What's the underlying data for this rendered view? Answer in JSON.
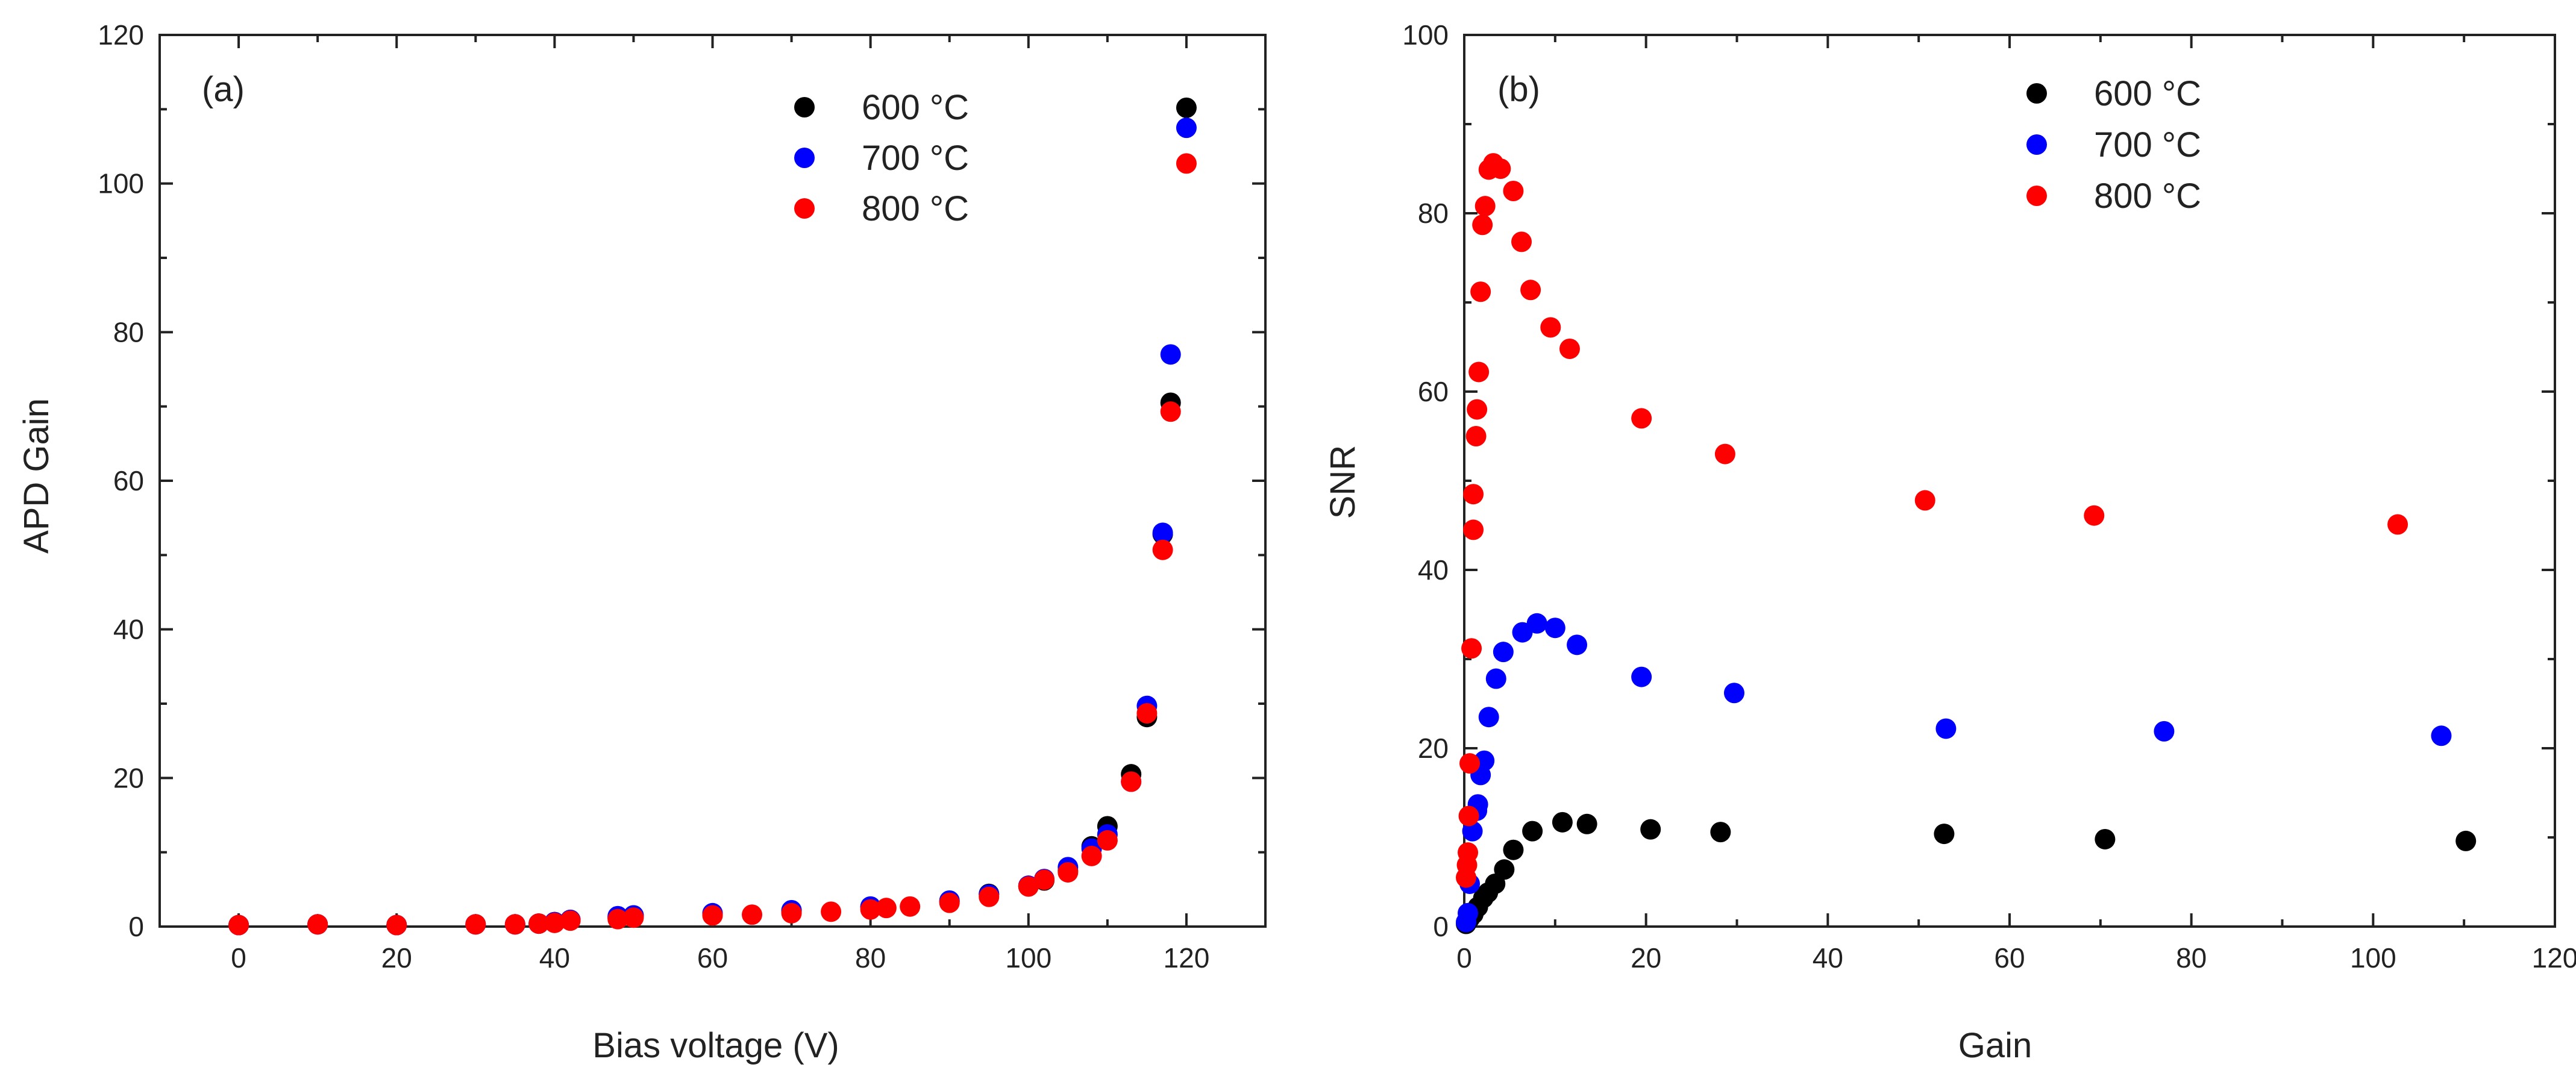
{
  "chart_data": [
    {
      "type": "scatter",
      "panel_label": "(a)",
      "xlabel": "Bias voltage (V)",
      "ylabel": "APD Gain",
      "xlim": [
        -10,
        130
      ],
      "ylim": [
        0,
        120
      ],
      "x_ticks": [
        0,
        20,
        40,
        60,
        80,
        100,
        120
      ],
      "y_ticks": [
        0,
        20,
        40,
        60,
        80,
        100,
        120
      ],
      "legend_position": "top-right",
      "series": [
        {
          "name": "600 °C",
          "color": "#000000",
          "points": [
            [
              0,
              0.2
            ],
            [
              10,
              0.3
            ],
            [
              20,
              0.2
            ],
            [
              30,
              0.3
            ],
            [
              35,
              0.3
            ],
            [
              38,
              0.4
            ],
            [
              40,
              0.6
            ],
            [
              42,
              0.9
            ],
            [
              48,
              1.2
            ],
            [
              50,
              1.5
            ],
            [
              60,
              1.7
            ],
            [
              70,
              2.1
            ],
            [
              80,
              2.6
            ],
            [
              90,
              3.4
            ],
            [
              95,
              4.4
            ],
            [
              100,
              5.4
            ],
            [
              102,
              6.2
            ],
            [
              105,
              7.5
            ],
            [
              108,
              10.8
            ],
            [
              110,
              13.5
            ],
            [
              113,
              20.5
            ],
            [
              115,
              28.2
            ],
            [
              117,
              52.8
            ],
            [
              118,
              70.5
            ],
            [
              120,
              110.2
            ]
          ]
        },
        {
          "name": "700 °C",
          "color": "#0000ff",
          "points": [
            [
              0,
              0.2
            ],
            [
              10,
              0.3
            ],
            [
              20,
              0.2
            ],
            [
              30,
              0.3
            ],
            [
              35,
              0.3
            ],
            [
              38,
              0.4
            ],
            [
              40,
              0.6
            ],
            [
              42,
              0.9
            ],
            [
              48,
              1.4
            ],
            [
              50,
              1.5
            ],
            [
              60,
              1.8
            ],
            [
              70,
              2.2
            ],
            [
              80,
              2.7
            ],
            [
              90,
              3.5
            ],
            [
              95,
              4.3
            ],
            [
              100,
              5.5
            ],
            [
              102,
              6.4
            ],
            [
              105,
              8.0
            ],
            [
              108,
              10.5
            ],
            [
              110,
              12.4
            ],
            [
              113,
              19.5
            ],
            [
              115,
              29.7
            ],
            [
              117,
              53.0
            ],
            [
              118,
              77.0
            ],
            [
              120,
              107.5
            ]
          ]
        },
        {
          "name": "800 °C",
          "color": "#ff0000",
          "points": [
            [
              0,
              0.2
            ],
            [
              10,
              0.3
            ],
            [
              20,
              0.2
            ],
            [
              30,
              0.3
            ],
            [
              35,
              0.3
            ],
            [
              38,
              0.4
            ],
            [
              40,
              0.5
            ],
            [
              42,
              0.8
            ],
            [
              48,
              1.0
            ],
            [
              50,
              1.2
            ],
            [
              60,
              1.5
            ],
            [
              65,
              1.6
            ],
            [
              70,
              1.8
            ],
            [
              75,
              2.0
            ],
            [
              80,
              2.3
            ],
            [
              82,
              2.5
            ],
            [
              85,
              2.7
            ],
            [
              90,
              3.2
            ],
            [
              95,
              4.0
            ],
            [
              100,
              5.4
            ],
            [
              102,
              6.3
            ],
            [
              105,
              7.3
            ],
            [
              108,
              9.5
            ],
            [
              110,
              11.6
            ],
            [
              113,
              19.5
            ],
            [
              115,
              28.7
            ],
            [
              117,
              50.7
            ],
            [
              118,
              69.3
            ],
            [
              120,
              102.7
            ]
          ]
        }
      ]
    },
    {
      "type": "scatter",
      "panel_label": "(b)",
      "xlabel": "Gain",
      "ylabel": "SNR",
      "xlim": [
        0,
        120
      ],
      "ylim": [
        0,
        100
      ],
      "x_ticks": [
        0,
        20,
        40,
        60,
        80,
        100,
        120
      ],
      "y_ticks": [
        0,
        20,
        40,
        60,
        80,
        100
      ],
      "legend_position": "top-right",
      "series": [
        {
          "name": "600 °C",
          "color": "#000000",
          "points": [
            [
              0.2,
              0.3
            ],
            [
              0.4,
              0.6
            ],
            [
              0.6,
              0.9
            ],
            [
              1.0,
              1.4
            ],
            [
              1.5,
              2.2
            ],
            [
              2.1,
              3.2
            ],
            [
              2.6,
              3.8
            ],
            [
              3.4,
              4.8
            ],
            [
              4.4,
              6.4
            ],
            [
              5.4,
              8.6
            ],
            [
              7.5,
              10.7
            ],
            [
              10.8,
              11.7
            ],
            [
              13.5,
              11.5
            ],
            [
              20.5,
              10.9
            ],
            [
              28.2,
              10.6
            ],
            [
              52.8,
              10.4
            ],
            [
              70.5,
              9.8
            ],
            [
              110.2,
              9.6
            ]
          ]
        },
        {
          "name": "700 °C",
          "color": "#0000ff",
          "points": [
            [
              0.2,
              0.5
            ],
            [
              0.4,
              1.5
            ],
            [
              0.6,
              4.8
            ],
            [
              0.9,
              10.7
            ],
            [
              1.4,
              13.0
            ],
            [
              1.5,
              13.7
            ],
            [
              1.8,
              17.0
            ],
            [
              2.2,
              18.6
            ],
            [
              2.7,
              23.5
            ],
            [
              3.5,
              27.8
            ],
            [
              4.3,
              30.8
            ],
            [
              6.4,
              33.0
            ],
            [
              8.0,
              34.0
            ],
            [
              10.0,
              33.5
            ],
            [
              12.4,
              31.6
            ],
            [
              19.5,
              28.0
            ],
            [
              29.7,
              26.2
            ],
            [
              53.0,
              22.2
            ],
            [
              77.0,
              21.9
            ],
            [
              107.5,
              21.4
            ]
          ]
        },
        {
          "name": "800 °C",
          "color": "#ff0000",
          "points": [
            [
              0.2,
              5.5
            ],
            [
              0.3,
              6.9
            ],
            [
              0.4,
              8.3
            ],
            [
              0.5,
              12.4
            ],
            [
              0.6,
              18.3
            ],
            [
              0.8,
              31.2
            ],
            [
              1.0,
              44.5
            ],
            [
              1.0,
              48.5
            ],
            [
              1.3,
              55.0
            ],
            [
              1.4,
              58.0
            ],
            [
              1.6,
              62.2
            ],
            [
              1.8,
              71.2
            ],
            [
              2.0,
              78.7
            ],
            [
              2.3,
              80.8
            ],
            [
              2.7,
              84.9
            ],
            [
              3.2,
              85.6
            ],
            [
              4.0,
              85.0
            ],
            [
              5.4,
              82.5
            ],
            [
              6.3,
              76.8
            ],
            [
              7.3,
              71.4
            ],
            [
              9.5,
              67.2
            ],
            [
              11.6,
              64.8
            ],
            [
              19.5,
              57.0
            ],
            [
              28.7,
              53.0
            ],
            [
              50.7,
              47.8
            ],
            [
              69.3,
              46.1
            ],
            [
              102.7,
              45.1
            ]
          ]
        }
      ]
    }
  ]
}
